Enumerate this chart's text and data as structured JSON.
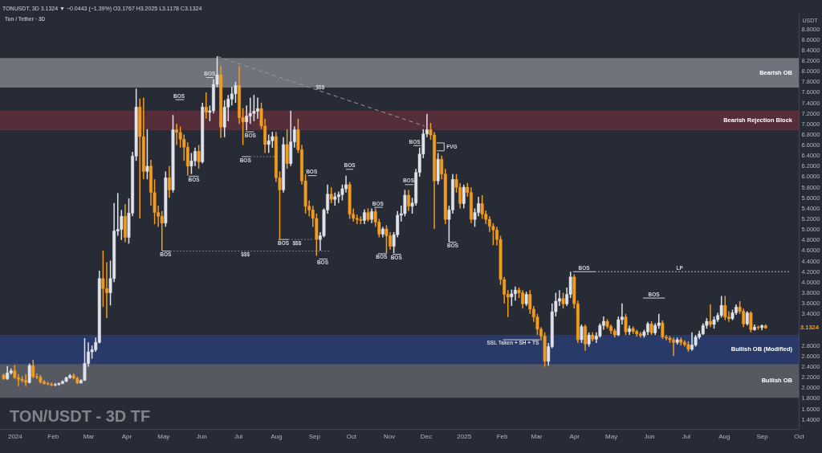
{
  "chart_data": {
    "type": "candlestick",
    "title": "TON/USDT - 3D TF",
    "subtitle": "Ton / Tether · 3D",
    "ylabel": "USDT",
    "x": [
      "2023-12-23",
      "2023-12-26",
      "2023-12-29",
      "2024-01-01",
      "2024-01-04",
      "2024-01-07",
      "2024-01-10",
      "2024-01-13",
      "2024-01-16",
      "2024-01-19",
      "2024-01-22",
      "2024-01-25",
      "2024-01-28",
      "2024-01-31",
      "2024-02-03",
      "2024-02-06",
      "2024-02-09",
      "2024-02-12",
      "2024-02-15",
      "2024-02-18",
      "2024-02-21",
      "2024-02-24",
      "2024-02-27",
      "2024-03-01",
      "2024-03-04",
      "2024-03-07",
      "2024-03-10",
      "2024-03-13",
      "2024-03-16",
      "2024-03-19",
      "2024-03-22",
      "2024-03-25",
      "2024-03-28",
      "2024-03-31",
      "2024-04-03",
      "2024-04-06",
      "2024-04-09",
      "2024-04-12",
      "2024-04-15",
      "2024-04-18",
      "2024-04-21",
      "2024-04-24",
      "2024-04-27",
      "2024-04-30",
      "2024-05-03",
      "2024-05-06",
      "2024-05-09",
      "2024-05-12",
      "2024-05-15",
      "2024-05-18",
      "2024-05-21",
      "2024-05-24",
      "2024-05-27",
      "2024-05-30",
      "2024-06-02",
      "2024-06-05",
      "2024-06-08",
      "2024-06-11",
      "2024-06-14",
      "2024-06-17",
      "2024-06-20",
      "2024-06-23",
      "2024-06-26",
      "2024-06-29",
      "2024-07-02",
      "2024-07-05",
      "2024-07-08",
      "2024-07-11",
      "2024-07-14",
      "2024-07-17",
      "2024-07-20",
      "2024-07-23",
      "2024-07-26",
      "2024-07-29",
      "2024-08-01",
      "2024-08-04",
      "2024-08-07",
      "2024-08-10",
      "2024-08-13",
      "2024-08-16",
      "2024-08-19",
      "2024-08-22",
      "2024-08-25",
      "2024-08-28",
      "2024-08-31",
      "2024-09-03",
      "2024-09-06",
      "2024-09-09",
      "2024-09-12",
      "2024-09-15",
      "2024-09-18",
      "2024-09-21",
      "2024-09-24",
      "2024-09-27",
      "2024-09-30",
      "2024-10-03",
      "2024-10-06",
      "2024-10-09",
      "2024-10-12",
      "2024-10-15",
      "2024-10-18",
      "2024-10-21",
      "2024-10-24",
      "2024-10-27",
      "2024-10-30",
      "2024-11-02",
      "2024-11-05",
      "2024-11-08",
      "2024-11-11",
      "2024-11-14",
      "2024-11-17",
      "2024-11-20",
      "2024-11-23",
      "2024-11-26",
      "2024-11-29",
      "2024-12-02",
      "2024-12-05",
      "2024-12-08",
      "2024-12-11",
      "2024-12-14",
      "2024-12-17",
      "2024-12-20",
      "2024-12-23",
      "2024-12-26",
      "2024-12-29",
      "2025-01-01",
      "2025-01-04",
      "2025-01-07",
      "2025-01-10",
      "2025-01-13",
      "2025-01-16",
      "2025-01-19",
      "2025-01-22",
      "2025-01-25",
      "2025-01-28",
      "2025-01-31",
      "2025-02-03",
      "2025-02-06",
      "2025-02-09",
      "2025-02-12",
      "2025-02-15",
      "2025-02-18",
      "2025-02-21",
      "2025-02-24",
      "2025-02-27",
      "2025-03-02",
      "2025-03-05",
      "2025-03-08",
      "2025-03-11",
      "2025-03-14",
      "2025-03-17",
      "2025-03-20",
      "2025-03-23",
      "2025-03-26",
      "2025-03-29",
      "2025-04-01",
      "2025-04-04",
      "2025-04-07",
      "2025-04-10",
      "2025-04-13",
      "2025-04-16",
      "2025-04-19",
      "2025-04-22",
      "2025-04-25",
      "2025-04-28",
      "2025-05-01",
      "2025-05-04",
      "2025-05-07",
      "2025-05-10",
      "2025-05-13",
      "2025-05-16",
      "2025-05-19",
      "2025-05-22",
      "2025-05-25",
      "2025-05-28",
      "2025-05-31",
      "2025-06-03",
      "2025-06-06",
      "2025-06-09",
      "2025-06-12",
      "2025-06-15",
      "2025-06-18",
      "2025-06-21",
      "2025-06-24",
      "2025-06-27",
      "2025-06-30",
      "2025-07-03",
      "2025-07-06",
      "2025-07-09",
      "2025-07-12",
      "2025-07-15",
      "2025-07-18",
      "2025-07-21",
      "2025-07-24",
      "2025-07-27",
      "2025-07-30",
      "2025-08-02",
      "2025-08-05",
      "2025-08-08",
      "2025-08-11",
      "2025-08-14",
      "2025-08-17",
      "2025-08-20",
      "2025-08-23",
      "2025-08-26",
      "2025-08-29",
      "2025-09-01",
      "2025-09-04"
    ],
    "ohlc": [
      [
        2.24,
        2.27,
        2.15,
        2.17
      ],
      [
        2.17,
        2.41,
        2.15,
        2.28
      ],
      [
        2.28,
        2.36,
        2.25,
        2.32
      ],
      [
        2.32,
        2.43,
        2.17,
        2.19
      ],
      [
        2.19,
        2.26,
        2.03,
        2.16
      ],
      [
        2.16,
        2.22,
        2.1,
        2.14
      ],
      [
        2.14,
        2.26,
        2.03,
        2.1
      ],
      [
        2.1,
        2.46,
        2.08,
        2.42
      ],
      [
        2.42,
        2.53,
        2.18,
        2.21
      ],
      [
        2.21,
        2.27,
        2.16,
        2.2
      ],
      [
        2.2,
        2.24,
        2.08,
        2.11
      ],
      [
        2.11,
        2.15,
        2.06,
        2.08
      ],
      [
        2.08,
        2.11,
        2.05,
        2.07
      ],
      [
        2.07,
        2.1,
        2.03,
        2.05
      ],
      [
        2.05,
        2.09,
        2.03,
        2.06
      ],
      [
        2.06,
        2.1,
        2.04,
        2.08
      ],
      [
        2.08,
        2.14,
        2.07,
        2.12
      ],
      [
        2.12,
        2.21,
        2.11,
        2.19
      ],
      [
        2.19,
        2.26,
        2.17,
        2.23
      ],
      [
        2.23,
        2.27,
        2.16,
        2.18
      ],
      [
        2.18,
        2.21,
        2.07,
        2.09
      ],
      [
        2.09,
        2.16,
        2.08,
        2.14
      ],
      [
        2.14,
        2.94,
        2.13,
        2.46
      ],
      [
        2.46,
        2.86,
        2.4,
        2.68
      ],
      [
        2.68,
        2.8,
        2.55,
        2.72
      ],
      [
        2.72,
        2.95,
        2.68,
        2.86
      ],
      [
        2.86,
        4.22,
        2.84,
        4.07
      ],
      [
        4.07,
        4.6,
        3.53,
        3.88
      ],
      [
        3.88,
        4.38,
        3.32,
        3.8
      ],
      [
        3.8,
        4.41,
        3.56,
        4.07
      ],
      [
        4.07,
        5.5,
        4.0,
        4.97
      ],
      [
        4.97,
        5.69,
        4.88,
        5.0
      ],
      [
        5.0,
        5.37,
        4.8,
        5.25
      ],
      [
        5.25,
        5.48,
        4.76,
        4.85
      ],
      [
        4.85,
        5.59,
        4.73,
        5.31
      ],
      [
        5.31,
        6.47,
        5.25,
        6.39
      ],
      [
        6.39,
        7.67,
        6.3,
        7.32
      ],
      [
        7.32,
        7.48,
        5.21,
        6.76
      ],
      [
        6.76,
        7.5,
        5.95,
        6.1
      ],
      [
        6.1,
        6.9,
        5.95,
        6.2
      ],
      [
        6.2,
        6.32,
        5.45,
        5.7
      ],
      [
        5.7,
        5.95,
        5.1,
        5.32
      ],
      [
        5.32,
        5.45,
        5.05,
        5.25
      ],
      [
        5.25,
        5.35,
        4.6,
        5.12
      ],
      [
        5.12,
        6.1,
        5.05,
        5.98
      ],
      [
        5.98,
        6.2,
        5.6,
        5.75
      ],
      [
        5.75,
        7.17,
        5.7,
        6.89
      ],
      [
        6.89,
        7.0,
        6.6,
        6.84
      ],
      [
        6.84,
        6.95,
        6.55,
        6.71
      ],
      [
        6.71,
        6.8,
        6.3,
        6.56
      ],
      [
        6.56,
        6.65,
        6.02,
        6.2
      ],
      [
        6.2,
        6.45,
        6.05,
        6.3
      ],
      [
        6.3,
        6.55,
        6.2,
        6.48
      ],
      [
        6.48,
        6.6,
        6.15,
        6.28
      ],
      [
        6.28,
        7.4,
        6.25,
        7.32
      ],
      [
        7.32,
        7.6,
        7.1,
        7.22
      ],
      [
        7.22,
        7.35,
        7.05,
        7.25
      ],
      [
        7.25,
        7.85,
        7.2,
        7.75
      ],
      [
        7.75,
        8.28,
        7.7,
        7.93
      ],
      [
        7.93,
        8.1,
        6.74,
        6.94
      ],
      [
        6.94,
        7.45,
        6.75,
        7.32
      ],
      [
        7.32,
        7.55,
        7.05,
        7.47
      ],
      [
        7.47,
        7.7,
        7.35,
        7.57
      ],
      [
        7.57,
        7.8,
        7.4,
        7.73
      ],
      [
        7.73,
        8.1,
        7.0,
        7.12
      ],
      [
        7.12,
        7.3,
        6.6,
        7.04
      ],
      [
        7.04,
        7.35,
        6.88,
        7.15
      ],
      [
        7.15,
        7.5,
        7.0,
        7.2
      ],
      [
        7.2,
        7.55,
        7.05,
        7.24
      ],
      [
        7.24,
        7.5,
        7.1,
        7.29
      ],
      [
        7.29,
        7.4,
        6.9,
        6.96
      ],
      [
        6.96,
        7.1,
        6.45,
        6.61
      ],
      [
        6.61,
        6.8,
        6.45,
        6.68
      ],
      [
        6.68,
        6.85,
        6.55,
        6.76
      ],
      [
        6.76,
        6.85,
        5.9,
        5.98
      ],
      [
        5.98,
        6.1,
        4.81,
        5.75
      ],
      [
        5.75,
        6.75,
        5.7,
        6.61
      ],
      [
        6.61,
        6.9,
        6.15,
        6.25
      ],
      [
        6.25,
        7.25,
        6.2,
        6.66
      ],
      [
        6.66,
        6.95,
        6.55,
        6.89
      ],
      [
        6.89,
        7.1,
        6.45,
        6.51
      ],
      [
        6.51,
        6.6,
        5.85,
        5.92
      ],
      [
        5.92,
        6.05,
        5.3,
        5.44
      ],
      [
        5.44,
        5.55,
        5.25,
        5.37
      ],
      [
        5.37,
        5.45,
        5.05,
        5.21
      ],
      [
        5.21,
        5.3,
        4.5,
        4.81
      ],
      [
        4.81,
        4.95,
        4.6,
        4.88
      ],
      [
        4.88,
        5.4,
        4.85,
        5.37
      ],
      [
        5.37,
        5.85,
        5.3,
        5.67
      ],
      [
        5.67,
        5.8,
        5.5,
        5.57
      ],
      [
        5.57,
        5.7,
        5.45,
        5.62
      ],
      [
        5.62,
        5.72,
        5.5,
        5.66
      ],
      [
        5.66,
        5.85,
        5.55,
        5.77
      ],
      [
        5.77,
        6.02,
        5.7,
        5.85
      ],
      [
        5.85,
        5.9,
        5.2,
        5.29
      ],
      [
        5.29,
        5.4,
        5.15,
        5.21
      ],
      [
        5.21,
        5.28,
        5.1,
        5.19
      ],
      [
        5.19,
        5.25,
        5.1,
        5.17
      ],
      [
        5.17,
        5.38,
        5.1,
        5.32
      ],
      [
        5.32,
        5.4,
        5.15,
        5.19
      ],
      [
        5.19,
        5.4,
        5.12,
        5.34
      ],
      [
        5.34,
        5.4,
        5.05,
        5.14
      ],
      [
        5.14,
        5.2,
        4.85,
        4.91
      ],
      [
        4.91,
        5.05,
        4.85,
        5.01
      ],
      [
        5.01,
        5.08,
        4.54,
        4.88
      ],
      [
        4.88,
        4.95,
        4.62,
        4.68
      ],
      [
        4.68,
        4.95,
        4.55,
        4.9
      ],
      [
        4.9,
        5.35,
        4.85,
        5.27
      ],
      [
        5.27,
        5.45,
        5.15,
        5.3
      ],
      [
        5.3,
        5.75,
        5.25,
        5.65
      ],
      [
        5.65,
        5.75,
        5.35,
        5.44
      ],
      [
        5.44,
        5.6,
        5.3,
        5.5
      ],
      [
        5.5,
        6.15,
        5.45,
        6.08
      ],
      [
        6.08,
        6.55,
        6.0,
        6.43
      ],
      [
        6.43,
        6.9,
        6.35,
        6.81
      ],
      [
        6.81,
        7.19,
        6.75,
        6.89
      ],
      [
        6.89,
        7.02,
        6.7,
        6.79
      ],
      [
        6.79,
        6.85,
        5.01,
        5.92
      ],
      [
        5.92,
        6.45,
        5.85,
        6.33
      ],
      [
        6.33,
        6.4,
        5.95,
        6.05
      ],
      [
        6.05,
        6.15,
        5.1,
        5.19
      ],
      [
        5.19,
        5.45,
        4.76,
        5.37
      ],
      [
        5.37,
        6.05,
        5.3,
        5.95
      ],
      [
        5.95,
        6.05,
        5.7,
        5.8
      ],
      [
        5.8,
        5.88,
        5.4,
        5.49
      ],
      [
        5.49,
        5.85,
        5.4,
        5.8
      ],
      [
        5.8,
        5.88,
        5.62,
        5.7
      ],
      [
        5.7,
        5.8,
        5.12,
        5.19
      ],
      [
        5.19,
        5.4,
        5.05,
        5.32
      ],
      [
        5.32,
        5.62,
        5.25,
        5.49
      ],
      [
        5.49,
        5.65,
        5.2,
        5.29
      ],
      [
        5.29,
        5.36,
        5.1,
        5.19
      ],
      [
        5.19,
        5.25,
        4.95,
        5.06
      ],
      [
        5.06,
        5.12,
        4.7,
        4.99
      ],
      [
        4.99,
        5.05,
        4.7,
        4.81
      ],
      [
        4.81,
        4.88,
        3.95,
        4.05
      ],
      [
        4.05,
        4.1,
        3.6,
        3.77
      ],
      [
        3.77,
        3.85,
        3.34,
        3.72
      ],
      [
        3.72,
        3.86,
        3.55,
        3.78
      ],
      [
        3.78,
        3.92,
        3.65,
        3.85
      ],
      [
        3.85,
        3.9,
        3.7,
        3.8
      ],
      [
        3.8,
        3.85,
        3.5,
        3.59
      ],
      [
        3.59,
        3.82,
        3.55,
        3.77
      ],
      [
        3.77,
        3.85,
        3.4,
        3.49
      ],
      [
        3.49,
        3.55,
        3.25,
        3.34
      ],
      [
        3.34,
        3.4,
        3.0,
        3.11
      ],
      [
        3.11,
        3.15,
        2.9,
        2.98
      ],
      [
        2.98,
        3.05,
        2.4,
        2.5
      ],
      [
        2.5,
        2.85,
        2.42,
        2.78
      ],
      [
        2.78,
        3.6,
        2.75,
        3.44
      ],
      [
        3.44,
        3.8,
        3.35,
        3.64
      ],
      [
        3.64,
        3.85,
        3.55,
        3.69
      ],
      [
        3.69,
        3.8,
        3.5,
        3.59
      ],
      [
        3.59,
        3.9,
        3.55,
        3.77
      ],
      [
        3.77,
        4.2,
        3.7,
        4.1
      ],
      [
        4.1,
        4.15,
        3.5,
        3.59
      ],
      [
        3.59,
        3.65,
        2.85,
        2.91
      ],
      [
        2.91,
        3.2,
        2.85,
        3.16
      ],
      [
        3.16,
        3.2,
        2.7,
        2.83
      ],
      [
        2.83,
        3.05,
        2.78,
        3.0
      ],
      [
        3.0,
        3.05,
        2.88,
        2.92
      ],
      [
        2.92,
        3.05,
        2.85,
        2.98
      ],
      [
        2.98,
        3.22,
        2.95,
        3.18
      ],
      [
        3.18,
        3.35,
        3.1,
        3.26
      ],
      [
        3.26,
        3.3,
        3.12,
        3.16
      ],
      [
        3.16,
        3.2,
        3.02,
        3.08
      ],
      [
        3.08,
        3.12,
        2.95,
        3.0
      ],
      [
        3.0,
        3.35,
        2.98,
        3.29
      ],
      [
        3.29,
        3.6,
        3.2,
        3.34
      ],
      [
        3.34,
        3.4,
        3.0,
        3.06
      ],
      [
        3.06,
        3.18,
        3.0,
        3.12
      ],
      [
        3.12,
        3.16,
        3.02,
        3.07
      ],
      [
        3.07,
        3.1,
        2.97,
        3.02
      ],
      [
        3.02,
        3.06,
        2.95,
        2.99
      ],
      [
        2.99,
        3.1,
        2.95,
        3.06
      ],
      [
        3.06,
        3.25,
        3.0,
        3.21
      ],
      [
        3.21,
        3.26,
        3.0,
        3.04
      ],
      [
        3.04,
        3.22,
        3.0,
        3.18
      ],
      [
        3.18,
        3.4,
        3.12,
        3.23
      ],
      [
        3.23,
        3.28,
        2.92,
        2.96
      ],
      [
        2.96,
        3.0,
        2.9,
        2.94
      ],
      [
        2.94,
        2.98,
        2.85,
        2.91
      ],
      [
        2.91,
        2.95,
        2.6,
        2.86
      ],
      [
        2.86,
        2.95,
        2.82,
        2.91
      ],
      [
        2.91,
        2.95,
        2.8,
        2.86
      ],
      [
        2.86,
        2.9,
        2.78,
        2.82
      ],
      [
        2.82,
        2.88,
        2.68,
        2.73
      ],
      [
        2.73,
        3.05,
        2.7,
        2.81
      ],
      [
        2.81,
        3.0,
        2.78,
        2.96
      ],
      [
        2.96,
        3.08,
        2.92,
        3.02
      ],
      [
        3.02,
        3.22,
        3.0,
        3.18
      ],
      [
        3.18,
        3.32,
        3.12,
        3.26
      ],
      [
        3.26,
        3.58,
        3.15,
        3.2
      ],
      [
        3.2,
        3.35,
        3.12,
        3.29
      ],
      [
        3.29,
        3.42,
        3.25,
        3.37
      ],
      [
        3.37,
        3.74,
        3.33,
        3.56
      ],
      [
        3.56,
        3.74,
        3.28,
        3.34
      ],
      [
        3.34,
        3.45,
        3.25,
        3.31
      ],
      [
        3.31,
        3.48,
        3.28,
        3.42
      ],
      [
        3.42,
        3.58,
        3.38,
        3.53
      ],
      [
        3.53,
        3.64,
        3.4,
        3.45
      ],
      [
        3.45,
        3.5,
        3.15,
        3.21
      ],
      [
        3.21,
        3.45,
        3.18,
        3.42
      ],
      [
        3.42,
        3.45,
        3.05,
        3.1
      ],
      [
        3.1,
        3.2,
        3.08,
        3.15
      ],
      [
        3.15,
        3.18,
        3.1,
        3.14
      ],
      [
        3.14,
        3.2,
        3.09,
        3.1767
      ],
      [
        3.1767,
        3.2025,
        3.1178,
        3.1324
      ]
    ],
    "colors": [
      "#f39c1f",
      "#e1e3ea",
      "#e1e3ea",
      "#f39c1f",
      "#f39c1f",
      "#f39c1f",
      "#f39c1f",
      "#e1e3ea",
      "#f39c1f",
      "#f39c1f",
      "#f39c1f",
      "#f39c1f",
      "#f39c1f",
      "#f39c1f",
      "#e1e3ea",
      "#e1e3ea",
      "#e1e3ea",
      "#e1e3ea",
      "#e1e3ea",
      "#f39c1f",
      "#f39c1f",
      "#e1e3ea",
      "#e1e3ea",
      "#e1e3ea",
      "#e1e3ea",
      "#e1e3ea",
      "#e1e3ea",
      "#f39c1f",
      "#f39c1f",
      "#e1e3ea",
      "#e1e3ea",
      "#e1e3ea",
      "#e1e3ea",
      "#f39c1f",
      "#e1e3ea",
      "#e1e3ea",
      "#e1e3ea",
      "#f39c1f",
      "#f39c1f",
      "#e1e3ea",
      "#f39c1f",
      "#f39c1f",
      "#f39c1f",
      "#f39c1f",
      "#e1e3ea",
      "#f39c1f",
      "#e1e3ea",
      "#f39c1f",
      "#f39c1f",
      "#f39c1f",
      "#f39c1f",
      "#e1e3ea",
      "#e1e3ea",
      "#f39c1f",
      "#e1e3ea",
      "#f39c1f",
      "#e1e3ea",
      "#e1e3ea",
      "#e1e3ea",
      "#f39c1f",
      "#e1e3ea",
      "#e1e3ea",
      "#e1e3ea",
      "#e1e3ea",
      "#f39c1f",
      "#f39c1f",
      "#e1e3ea",
      "#e1e3ea",
      "#e1e3ea",
      "#e1e3ea",
      "#f39c1f",
      "#f39c1f",
      "#e1e3ea",
      "#e1e3ea",
      "#f39c1f",
      "#f39c1f",
      "#e1e3ea",
      "#f39c1f",
      "#e1e3ea",
      "#e1e3ea",
      "#f39c1f",
      "#f39c1f",
      "#f39c1f",
      "#f39c1f",
      "#f39c1f",
      "#f39c1f",
      "#e1e3ea",
      "#e1e3ea",
      "#e1e3ea",
      "#f39c1f",
      "#e1e3ea",
      "#e1e3ea",
      "#e1e3ea",
      "#e1e3ea",
      "#f39c1f",
      "#f39c1f",
      "#f39c1f",
      "#f39c1f",
      "#e1e3ea",
      "#f39c1f",
      "#e1e3ea",
      "#f39c1f",
      "#f39c1f",
      "#e1e3ea",
      "#f39c1f",
      "#f39c1f",
      "#e1e3ea",
      "#e1e3ea",
      "#e1e3ea",
      "#e1e3ea",
      "#f39c1f",
      "#e1e3ea",
      "#e1e3ea",
      "#e1e3ea",
      "#e1e3ea",
      "#e1e3ea",
      "#f39c1f",
      "#f39c1f",
      "#e1e3ea",
      "#f39c1f",
      "#f39c1f",
      "#e1e3ea",
      "#e1e3ea",
      "#f39c1f",
      "#f39c1f",
      "#e1e3ea",
      "#f39c1f",
      "#f39c1f",
      "#e1e3ea",
      "#e1e3ea",
      "#f39c1f",
      "#f39c1f",
      "#f39c1f",
      "#f39c1f",
      "#f39c1f",
      "#f39c1f",
      "#f39c1f",
      "#f39c1f",
      "#e1e3ea",
      "#e1e3ea",
      "#f39c1f",
      "#f39c1f",
      "#e1e3ea",
      "#f39c1f",
      "#f39c1f",
      "#f39c1f",
      "#f39c1f",
      "#f39c1f",
      "#e1e3ea",
      "#e1e3ea",
      "#e1e3ea",
      "#e1e3ea",
      "#f39c1f",
      "#e1e3ea",
      "#e1e3ea",
      "#f39c1f",
      "#f39c1f",
      "#e1e3ea",
      "#f39c1f",
      "#e1e3ea",
      "#f39c1f",
      "#e1e3ea",
      "#e1e3ea",
      "#e1e3ea",
      "#f39c1f",
      "#f39c1f",
      "#f39c1f",
      "#e1e3ea",
      "#e1e3ea",
      "#f39c1f",
      "#e1e3ea",
      "#f39c1f",
      "#f39c1f",
      "#f39c1f",
      "#e1e3ea",
      "#e1e3ea",
      "#f39c1f",
      "#e1e3ea",
      "#e1e3ea",
      "#f39c1f",
      "#f39c1f",
      "#f39c1f",
      "#f39c1f",
      "#e1e3ea",
      "#f39c1f",
      "#f39c1f",
      "#f39c1f",
      "#e1e3ea",
      "#e1e3ea",
      "#e1e3ea",
      "#e1e3ea",
      "#e1e3ea",
      "#f39c1f",
      "#e1e3ea",
      "#e1e3ea",
      "#e1e3ea",
      "#f39c1f",
      "#f39c1f",
      "#e1e3ea",
      "#e1e3ea",
      "#f39c1f",
      "#f39c1f",
      "#e1e3ea",
      "#f39c1f",
      "#e1e3ea",
      "#f39c1f",
      "#e1e3ea",
      "#f39c1f"
    ],
    "xlim": [
      "2023-12-20",
      "2025-10-01"
    ],
    "ylim": [
      1.22,
      9.09
    ],
    "xticks": [
      {
        "value": "2024-01-01",
        "label": "2024"
      },
      {
        "value": "2024-02-01",
        "label": "Feb"
      },
      {
        "value": "2024-03-01",
        "label": "Mar"
      },
      {
        "value": "2024-04-01",
        "label": "Apr"
      },
      {
        "value": "2024-05-01",
        "label": "May"
      },
      {
        "value": "2024-06-01",
        "label": "Jun"
      },
      {
        "value": "2024-07-01",
        "label": "Jul"
      },
      {
        "value": "2024-08-01",
        "label": "Aug"
      },
      {
        "value": "2024-09-01",
        "label": "Sep"
      },
      {
        "value": "2024-10-01",
        "label": "Oct"
      },
      {
        "value": "2024-11-01",
        "label": "Nov"
      },
      {
        "value": "2024-12-01",
        "label": "Dec"
      },
      {
        "value": "2025-01-01",
        "label": "2025"
      },
      {
        "value": "2025-02-01",
        "label": "Feb"
      },
      {
        "value": "2025-03-01",
        "label": "Mar"
      },
      {
        "value": "2025-04-01",
        "label": "Apr"
      },
      {
        "value": "2025-05-01",
        "label": "May"
      },
      {
        "value": "2025-06-01",
        "label": "Jun"
      },
      {
        "value": "2025-07-01",
        "label": "Jul"
      },
      {
        "value": "2025-08-01",
        "label": "Aug"
      },
      {
        "value": "2025-09-01",
        "label": "Sep"
      },
      {
        "value": "2025-10-01",
        "label": "Oct"
      }
    ],
    "yticks": [
      {
        "value": 1.4,
        "label": "1.4000"
      },
      {
        "value": 1.6,
        "label": "1.6000"
      },
      {
        "value": 1.8,
        "label": "1.8000"
      },
      {
        "value": 2.0,
        "label": "2.0000"
      },
      {
        "value": 2.2,
        "label": "2.2000"
      },
      {
        "value": 2.4,
        "label": "2.4000"
      },
      {
        "value": 2.6,
        "label": "2.6000"
      },
      {
        "value": 2.8,
        "label": "2.8000"
      },
      {
        "value": 3.4,
        "label": "3.4000"
      },
      {
        "value": 3.6,
        "label": "3.6000"
      },
      {
        "value": 3.8,
        "label": "3.8000"
      },
      {
        "value": 4.0,
        "label": "4.0000"
      },
      {
        "value": 4.2,
        "label": "4.2000"
      },
      {
        "value": 4.4,
        "label": "4.4000"
      },
      {
        "value": 4.6,
        "label": "4.6000"
      },
      {
        "value": 4.8,
        "label": "4.8000"
      },
      {
        "value": 5.0,
        "label": "5.0000"
      },
      {
        "value": 5.2,
        "label": "5.2000"
      },
      {
        "value": 5.4,
        "label": "5.4000"
      },
      {
        "value": 5.6,
        "label": "5.6000"
      },
      {
        "value": 5.8,
        "label": "5.8000"
      },
      {
        "value": 6.0,
        "label": "6.0000"
      },
      {
        "value": 6.2,
        "label": "6.2000"
      },
      {
        "value": 6.4,
        "label": "6.4000"
      },
      {
        "value": 6.6,
        "label": "6.6000"
      },
      {
        "value": 6.8,
        "label": "6.8000"
      },
      {
        "value": 7.0,
        "label": "7.0000"
      },
      {
        "value": 7.2,
        "label": "7.2000"
      },
      {
        "value": 7.4,
        "label": "7.4000"
      },
      {
        "value": 7.6,
        "label": "7.6000"
      },
      {
        "value": 7.8,
        "label": "7.8000"
      },
      {
        "value": 8.0,
        "label": "8.0000"
      },
      {
        "value": 8.2,
        "label": "8.2000"
      },
      {
        "value": 8.4,
        "label": "8.4000"
      },
      {
        "value": 8.6,
        "label": "8.6000"
      },
      {
        "value": 8.8,
        "label": "8.8000"
      }
    ],
    "bands": [
      {
        "axis": "y",
        "from": 7.69,
        "to": 8.25,
        "label": "Bearish OB",
        "color": "#70737c"
      },
      {
        "axis": "y",
        "from": 6.88,
        "to": 7.25,
        "label": "Bearish Rejection Block",
        "color": "#552e3a"
      },
      {
        "axis": "y",
        "from": 2.45,
        "to": 3.0,
        "label": "Bullish OB (Modified)",
        "color": "#293a68"
      },
      {
        "axis": "y",
        "from": 1.81,
        "to": 2.45,
        "label": "Bullish OB",
        "color": "#565962"
      }
    ],
    "series": [
      {
        "type": "line",
        "x": [
          "2024-06-14",
          "2024-11-30"
        ],
        "values": [
          8.28,
          6.96
        ],
        "color": "#9598a1",
        "line_style": "dashed"
      },
      {
        "type": "line",
        "x": [
          "2024-04-30",
          "2024-05-07"
        ],
        "values": [
          4.59,
          4.59
        ],
        "color": "#d1d4dc",
        "line_style": "solid"
      },
      {
        "type": "line",
        "x": [
          "2024-05-07",
          "2024-09-14"
        ],
        "values": [
          4.59,
          4.59
        ],
        "color": "#9598a1",
        "line_style": "dotted"
      },
      {
        "type": "line",
        "x": [
          "2024-05-11",
          "2024-05-18"
        ],
        "values": [
          7.46,
          7.46
        ],
        "color": "#d1d4dc",
        "line_style": "solid"
      },
      {
        "type": "line",
        "x": [
          "2024-06-05",
          "2024-06-11"
        ],
        "values": [
          7.88,
          7.88
        ],
        "color": "#d1d4dc",
        "line_style": "solid"
      },
      {
        "type": "line",
        "x": [
          "2024-05-22",
          "2024-05-30"
        ],
        "values": [
          6.01,
          6.01
        ],
        "color": "#d1d4dc",
        "line_style": "solid"
      },
      {
        "type": "line",
        "x": [
          "2024-07-07",
          "2024-07-14"
        ],
        "values": [
          6.85,
          6.85
        ],
        "color": "#d1d4dc",
        "line_style": "solid"
      },
      {
        "type": "line",
        "x": [
          "2024-07-04",
          "2024-07-11"
        ],
        "values": [
          6.38,
          6.38
        ],
        "color": "#d1d4dc",
        "line_style": "solid"
      },
      {
        "type": "line",
        "x": [
          "2024-07-11",
          "2024-08-04"
        ],
        "values": [
          6.38,
          6.38
        ],
        "color": "#9598a1",
        "line_style": "dotted"
      },
      {
        "type": "line",
        "x": [
          "2024-08-27",
          "2024-09-03"
        ],
        "values": [
          6.02,
          6.02
        ],
        "color": "#d1d4dc",
        "line_style": "solid"
      },
      {
        "type": "line",
        "x": [
          "2024-09-27",
          "2024-10-03"
        ],
        "values": [
          6.14,
          6.14
        ],
        "color": "#d1d4dc",
        "line_style": "solid"
      },
      {
        "type": "line",
        "x": [
          "2024-08-03",
          "2024-08-11"
        ],
        "values": [
          4.81,
          4.81
        ],
        "color": "#d1d4dc",
        "line_style": "solid"
      },
      {
        "type": "line",
        "x": [
          "2024-08-11",
          "2024-09-01"
        ],
        "values": [
          4.81,
          4.81
        ],
        "color": "#9598a1",
        "line_style": "dotted"
      },
      {
        "type": "line",
        "x": [
          "2024-09-05",
          "2024-09-12"
        ],
        "values": [
          4.44,
          4.44
        ],
        "color": "#d1d4dc",
        "line_style": "solid"
      },
      {
        "type": "line",
        "x": [
          "2024-10-20",
          "2024-10-27"
        ],
        "values": [
          5.42,
          5.42
        ],
        "color": "#d1d4dc",
        "line_style": "solid"
      },
      {
        "type": "line",
        "x": [
          "2024-10-23",
          "2024-10-30"
        ],
        "values": [
          4.54,
          4.54
        ],
        "color": "#d1d4dc",
        "line_style": "solid"
      },
      {
        "type": "line",
        "x": [
          "2024-11-04",
          "2024-11-11"
        ],
        "values": [
          4.53,
          4.53
        ],
        "color": "#d1d4dc",
        "line_style": "solid"
      },
      {
        "type": "line",
        "x": [
          "2024-11-14",
          "2024-11-21"
        ],
        "values": [
          5.85,
          5.85
        ],
        "color": "#d1d4dc",
        "line_style": "solid"
      },
      {
        "type": "line",
        "x": [
          "2024-11-21",
          "2024-11-27"
        ],
        "values": [
          6.59,
          6.59
        ],
        "color": "#d1d4dc",
        "line_style": "solid"
      },
      {
        "type": "line",
        "x": [
          "2024-12-10",
          "2024-12-16",
          "2024-12-16",
          "2024-12-10"
        ],
        "values": [
          6.64,
          6.64,
          6.49,
          6.49
        ],
        "color": "#d1d4dc",
        "line_style": "solid"
      },
      {
        "type": "line",
        "x": [
          "2024-12-20",
          "2024-12-26"
        ],
        "values": [
          4.76,
          4.76
        ],
        "color": "#d1d4dc",
        "line_style": "solid"
      },
      {
        "type": "line",
        "x": [
          "2025-02-02",
          "2025-03-04"
        ],
        "values": [
          2.91,
          2.91
        ],
        "color": "#d1d4dc",
        "line_style": "solid"
      },
      {
        "type": "line",
        "x": [
          "2025-03-31",
          "2025-04-18"
        ],
        "values": [
          4.2,
          4.2
        ],
        "color": "#d1d4dc",
        "line_style": "solid"
      },
      {
        "type": "line",
        "x": [
          "2025-04-18",
          "2025-09-24"
        ],
        "values": [
          4.2,
          4.2
        ],
        "color": "#d1d4dc",
        "line_style": "dotted"
      },
      {
        "type": "line",
        "x": [
          "2025-05-27",
          "2025-06-14"
        ],
        "values": [
          3.7,
          3.7
        ],
        "color": "#d1d4dc",
        "line_style": "solid"
      }
    ],
    "annotations": [
      "TONUSDT, 3D 3.1324 ▼ −0.0443 (−1.39%) O3.1767 H3.2025 L3.1178 C3.1324",
      {
        "text": "BOS",
        "x": "2024-05-14",
        "y": 7.46
      },
      {
        "text": "BOS",
        "x": "2024-06-08",
        "y": 7.88
      },
      {
        "text": "BOS",
        "x": "2024-05-26",
        "y": 6.01
      },
      {
        "text": "BOS",
        "x": "2024-07-11",
        "y": 6.85
      },
      {
        "text": "BOS",
        "x": "2024-07-07",
        "y": 6.38
      },
      {
        "text": "BOS",
        "x": "2024-05-03",
        "y": 4.59
      },
      {
        "text": "$$$",
        "x": "2024-07-07",
        "y": 4.59
      },
      {
        "text": "$$$",
        "x": "2024-09-06",
        "y": 7.62
      },
      {
        "text": "BOS",
        "x": "2024-08-30",
        "y": 6.02
      },
      {
        "text": "BOS",
        "x": "2024-09-30",
        "y": 6.14
      },
      {
        "text": "BOS",
        "x": "2024-08-07",
        "y": 4.81
      },
      {
        "text": "$$$",
        "x": "2024-08-18",
        "y": 4.81
      },
      {
        "text": "BOS",
        "x": "2024-09-08",
        "y": 4.44
      },
      {
        "text": "BOS",
        "x": "2024-10-23",
        "y": 5.42
      },
      {
        "text": "BOS",
        "x": "2024-10-26",
        "y": 4.54
      },
      {
        "text": "BOS",
        "x": "2024-11-07",
        "y": 4.53
      },
      {
        "text": "BOS",
        "x": "2024-11-17",
        "y": 5.85
      },
      {
        "text": "BOS",
        "x": "2024-11-22",
        "y": 6.59
      },
      {
        "text": "FVG",
        "x": "2024-12-16",
        "y": 6.565
      },
      {
        "text": "BOS",
        "x": "2024-12-23",
        "y": 4.76
      },
      {
        "text": "SSL Taken + SH + TS",
        "x": "2025-02-10",
        "y": 2.91
      },
      {
        "text": "BOS",
        "x": "2025-04-09",
        "y": 4.2
      },
      {
        "text": "LP",
        "x": "2025-06-26",
        "y": 4.2
      },
      {
        "text": "BOS",
        "x": "2025-06-05",
        "y": 3.7
      },
      "3.1324"
    ]
  }
}
